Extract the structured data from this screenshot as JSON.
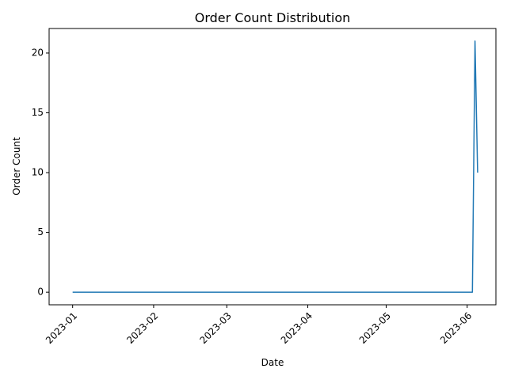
{
  "chart_data": {
    "type": "line",
    "title": "Order Count Distribution",
    "xlabel": "Date",
    "ylabel": "Order Count",
    "x_ticks": [
      "2023-01",
      "2023-02",
      "2023-03",
      "2023-04",
      "2023-05",
      "2023-06"
    ],
    "y_ticks": [
      0,
      5,
      10,
      15,
      20
    ],
    "xlim": [
      "2022-12-23",
      "2023-06-12"
    ],
    "ylim": [
      -1.05,
      22.05
    ],
    "grid": false,
    "legend": "none",
    "series": [
      {
        "color": "#1f77b4",
        "x": [
          "2023-01-01",
          "2023-06-03",
          "2023-06-04",
          "2023-06-05"
        ],
        "y": [
          0,
          0,
          21,
          10
        ]
      }
    ]
  }
}
